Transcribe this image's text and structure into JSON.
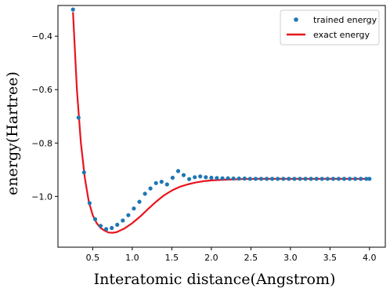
{
  "chart_data": {
    "type": "line",
    "title": "",
    "xlabel": "Interatomic distance(Angstrom)",
    "ylabel": "energy(Hartree)",
    "xlim": [
      0.06,
      4.2
    ],
    "ylim": [
      -1.19,
      -0.285
    ],
    "xticks": [
      0.5,
      1.0,
      1.5,
      2.0,
      2.5,
      3.0,
      3.5,
      4.0
    ],
    "xtick_labels": [
      "0.5",
      "1.0",
      "1.5",
      "2.0",
      "2.5",
      "3.0",
      "3.5",
      "4.0"
    ],
    "yticks": [
      -1.0,
      -0.8,
      -0.6,
      -0.4
    ],
    "ytick_labels": [
      "−1.0",
      "−0.8",
      "−0.6",
      "−0.4"
    ],
    "grid": false,
    "legend_position": "top-right",
    "series": [
      {
        "name": "trained energy",
        "kind": "scatter",
        "color": "#1f77b4",
        "x": [
          0.25,
          0.32,
          0.39,
          0.46,
          0.53,
          0.6,
          0.67,
          0.74,
          0.81,
          0.88,
          0.95,
          1.02,
          1.09,
          1.16,
          1.23,
          1.3,
          1.37,
          1.44,
          1.51,
          1.58,
          1.65,
          1.72,
          1.79,
          1.86,
          1.93,
          2.0,
          2.07,
          2.14,
          2.21,
          2.28,
          2.35,
          2.42,
          2.49,
          2.56,
          2.63,
          2.7,
          2.77,
          2.84,
          2.91,
          2.98,
          3.05,
          3.12,
          3.19,
          3.26,
          3.33,
          3.4,
          3.47,
          3.54,
          3.61,
          3.68,
          3.75,
          3.82,
          3.89,
          3.96,
          4.0
        ],
        "y": [
          -0.3,
          -0.705,
          -0.91,
          -1.025,
          -1.085,
          -1.11,
          -1.122,
          -1.118,
          -1.106,
          -1.09,
          -1.07,
          -1.045,
          -1.02,
          -0.99,
          -0.97,
          -0.95,
          -0.945,
          -0.955,
          -0.93,
          -0.905,
          -0.92,
          -0.935,
          -0.928,
          -0.925,
          -0.928,
          -0.93,
          -0.931,
          -0.932,
          -0.932,
          -0.933,
          -0.933,
          -0.933,
          -0.934,
          -0.934,
          -0.934,
          -0.934,
          -0.934,
          -0.934,
          -0.934,
          -0.934,
          -0.934,
          -0.934,
          -0.934,
          -0.934,
          -0.934,
          -0.934,
          -0.934,
          -0.934,
          -0.934,
          -0.934,
          -0.934,
          -0.934,
          -0.934,
          -0.934,
          -0.934
        ]
      },
      {
        "name": "exact energy",
        "kind": "line",
        "color": "#e8141e",
        "x": [
          0.25,
          0.3,
          0.35,
          0.4,
          0.45,
          0.5,
          0.55,
          0.6,
          0.65,
          0.7,
          0.75,
          0.8,
          0.9,
          1.0,
          1.1,
          1.2,
          1.3,
          1.4,
          1.5,
          1.6,
          1.7,
          1.8,
          1.9,
          2.0,
          2.2,
          2.4,
          2.6,
          2.8,
          3.0,
          3.5,
          4.0
        ],
        "y": [
          -0.31,
          -0.6,
          -0.8,
          -0.93,
          -1.02,
          -1.07,
          -1.1,
          -1.118,
          -1.128,
          -1.135,
          -1.136,
          -1.134,
          -1.12,
          -1.1,
          -1.075,
          -1.047,
          -1.02,
          -0.996,
          -0.978,
          -0.964,
          -0.955,
          -0.948,
          -0.943,
          -0.94,
          -0.937,
          -0.935,
          -0.934,
          -0.934,
          -0.934,
          -0.934,
          -0.934
        ]
      }
    ]
  }
}
